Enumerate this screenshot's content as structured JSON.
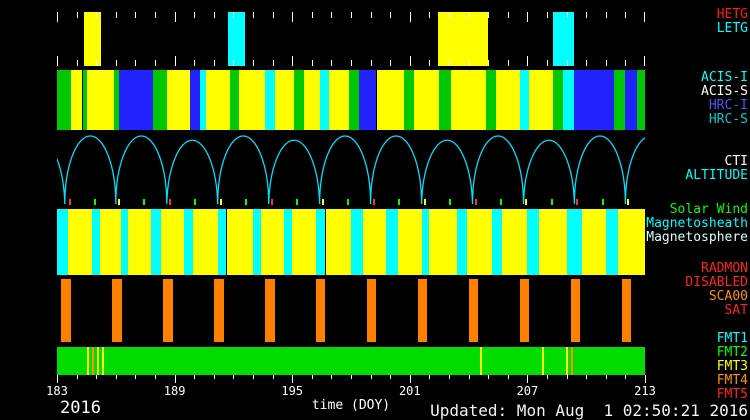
{
  "meta": {
    "year": "2016",
    "updated": "Updated: Mon Aug  1 02:50:21 2016"
  },
  "chart_data": {
    "type": "bar",
    "subtype": "mission-schedule-timeline",
    "xlabel": "time (DOY)",
    "x_range": [
      183,
      213
    ],
    "x_major_ticks": [
      183,
      189,
      195,
      201,
      207,
      213
    ],
    "background": "#000000",
    "axis_text_color": "#ffffff",
    "bands": [
      {
        "id": "grating",
        "labels": [
          {
            "text": "HETG",
            "color": "#ff1a1a"
          },
          {
            "text": "LETG",
            "color": "#00ffff"
          }
        ],
        "tick_color": "#ffffff",
        "segments": [
          {
            "start": 184.4,
            "end": 185.25,
            "color": "#ffff00"
          },
          {
            "start": 191.7,
            "end": 192.6,
            "color": "#00ffff"
          },
          {
            "start": 202.45,
            "end": 205.0,
            "color": "#ffff00"
          },
          {
            "start": 208.3,
            "end": 209.4,
            "color": "#00ffff"
          }
        ]
      },
      {
        "id": "instrument",
        "labels": [
          {
            "text": "ACIS-I",
            "color": "#00ffff"
          },
          {
            "text": "ACIS-S",
            "color": "#ffffff"
          },
          {
            "text": "HRC-I",
            "color": "#5050ff"
          },
          {
            "text": "HRC-S",
            "color": "#00c8c8"
          }
        ],
        "segments": [
          {
            "start": 183.0,
            "end": 183.7,
            "color": "#00c800"
          },
          {
            "start": 183.7,
            "end": 184.3,
            "color": "#ffff00"
          },
          {
            "start": 184.3,
            "end": 184.55,
            "color": "#00c800"
          },
          {
            "start": 184.55,
            "end": 185.9,
            "color": "#ffff00"
          },
          {
            "start": 185.9,
            "end": 186.15,
            "color": "#00c800"
          },
          {
            "start": 186.15,
            "end": 187.9,
            "color": "#2222ff"
          },
          {
            "start": 187.9,
            "end": 188.6,
            "color": "#00c800"
          },
          {
            "start": 188.6,
            "end": 189.8,
            "color": "#ffff00"
          },
          {
            "start": 189.8,
            "end": 190.3,
            "color": "#2222ff"
          },
          {
            "start": 190.3,
            "end": 190.6,
            "color": "#00ffff"
          },
          {
            "start": 190.6,
            "end": 191.8,
            "color": "#ffff00"
          },
          {
            "start": 191.8,
            "end": 192.3,
            "color": "#00c800"
          },
          {
            "start": 192.3,
            "end": 193.6,
            "color": "#ffff00"
          },
          {
            "start": 193.6,
            "end": 194.1,
            "color": "#00ffff"
          },
          {
            "start": 194.1,
            "end": 195.1,
            "color": "#ffff00"
          },
          {
            "start": 195.1,
            "end": 195.6,
            "color": "#00c800"
          },
          {
            "start": 195.6,
            "end": 196.4,
            "color": "#ffff00"
          },
          {
            "start": 196.4,
            "end": 196.9,
            "color": "#00ffff"
          },
          {
            "start": 196.9,
            "end": 197.9,
            "color": "#ffff00"
          },
          {
            "start": 197.9,
            "end": 198.4,
            "color": "#00c800"
          },
          {
            "start": 198.4,
            "end": 199.3,
            "color": "#2222ff"
          },
          {
            "start": 199.3,
            "end": 200.7,
            "color": "#ffff00"
          },
          {
            "start": 200.7,
            "end": 201.2,
            "color": "#00c800"
          },
          {
            "start": 201.2,
            "end": 202.5,
            "color": "#ffff00"
          },
          {
            "start": 202.5,
            "end": 203.1,
            "color": "#00c800"
          },
          {
            "start": 203.1,
            "end": 204.9,
            "color": "#ffff00"
          },
          {
            "start": 204.9,
            "end": 205.4,
            "color": "#00c800"
          },
          {
            "start": 205.4,
            "end": 206.6,
            "color": "#ffff00"
          },
          {
            "start": 206.6,
            "end": 207.1,
            "color": "#00ffff"
          },
          {
            "start": 207.1,
            "end": 208.3,
            "color": "#ffff00"
          },
          {
            "start": 208.3,
            "end": 208.8,
            "color": "#00c800"
          },
          {
            "start": 208.8,
            "end": 209.4,
            "color": "#00ffff"
          },
          {
            "start": 209.4,
            "end": 211.4,
            "color": "#2222ff"
          },
          {
            "start": 211.4,
            "end": 212.0,
            "color": "#00c800"
          },
          {
            "start": 212.0,
            "end": 212.6,
            "color": "#2222ff"
          },
          {
            "start": 212.6,
            "end": 213.0,
            "color": "#00c800"
          }
        ]
      },
      {
        "id": "altitude",
        "labels": [
          {
            "text": "CTI",
            "color": "#ffffff"
          },
          {
            "text": "ALTITUDE",
            "color": "#00ffff"
          }
        ],
        "arc_color": "#00e0ff",
        "perigees": [
          180.8,
          183.4,
          186.0,
          188.6,
          191.2,
          193.8,
          196.4,
          199.0,
          201.6,
          204.2,
          206.8,
          209.4,
          212.0,
          214.6
        ],
        "ticks": [
          {
            "pos": 183.6,
            "color": "#ff3030"
          },
          {
            "pos": 184.9,
            "color": "#00ff00"
          },
          {
            "pos": 186.1,
            "color": "#ffff00"
          },
          {
            "pos": 187.4,
            "color": "#00ff00"
          },
          {
            "pos": 188.7,
            "color": "#ff3030"
          },
          {
            "pos": 190.0,
            "color": "#00ff00"
          },
          {
            "pos": 191.3,
            "color": "#ffff00"
          },
          {
            "pos": 192.6,
            "color": "#00ff00"
          },
          {
            "pos": 193.9,
            "color": "#ff3030"
          },
          {
            "pos": 195.2,
            "color": "#00ff00"
          },
          {
            "pos": 196.5,
            "color": "#ffff00"
          },
          {
            "pos": 197.8,
            "color": "#00ff00"
          },
          {
            "pos": 199.1,
            "color": "#ff3030"
          },
          {
            "pos": 200.4,
            "color": "#00ff00"
          },
          {
            "pos": 201.7,
            "color": "#ffff00"
          },
          {
            "pos": 203.0,
            "color": "#00ff00"
          },
          {
            "pos": 204.3,
            "color": "#ff3030"
          },
          {
            "pos": 205.6,
            "color": "#00ff00"
          },
          {
            "pos": 206.9,
            "color": "#ffff00"
          },
          {
            "pos": 208.2,
            "color": "#00ff00"
          },
          {
            "pos": 209.5,
            "color": "#ff3030"
          },
          {
            "pos": 210.8,
            "color": "#00ff00"
          },
          {
            "pos": 212.1,
            "color": "#ffff00"
          }
        ]
      },
      {
        "id": "regions",
        "labels": [
          {
            "text": "Solar Wind",
            "color": "#00ff00"
          },
          {
            "text": "Magnetosheath",
            "color": "#00ffff"
          },
          {
            "text": "Magnetosphere",
            "color": "#d8ffff"
          }
        ],
        "segments": [
          {
            "start": 183.0,
            "end": 183.55,
            "color": "#00ffff"
          },
          {
            "start": 183.55,
            "end": 184.8,
            "color": "#ffff00"
          },
          {
            "start": 184.8,
            "end": 185.2,
            "color": "#00ffff"
          },
          {
            "start": 185.2,
            "end": 186.25,
            "color": "#ffff00"
          },
          {
            "start": 186.25,
            "end": 186.6,
            "color": "#00ffff"
          },
          {
            "start": 186.6,
            "end": 187.8,
            "color": "#ffff00"
          },
          {
            "start": 187.8,
            "end": 188.3,
            "color": "#00ffff"
          },
          {
            "start": 188.3,
            "end": 189.5,
            "color": "#ffff00"
          },
          {
            "start": 189.5,
            "end": 189.95,
            "color": "#00ffff"
          },
          {
            "start": 189.95,
            "end": 191.2,
            "color": "#ffff00"
          },
          {
            "start": 191.2,
            "end": 191.65,
            "color": "#00ffff"
          },
          {
            "start": 191.65,
            "end": 193.0,
            "color": "#ffff00"
          },
          {
            "start": 193.0,
            "end": 193.4,
            "color": "#00ffff"
          },
          {
            "start": 193.4,
            "end": 194.6,
            "color": "#ffff00"
          },
          {
            "start": 194.6,
            "end": 195.0,
            "color": "#00ffff"
          },
          {
            "start": 195.0,
            "end": 196.2,
            "color": "#ffff00"
          },
          {
            "start": 196.2,
            "end": 196.7,
            "color": "#00ffff"
          },
          {
            "start": 196.7,
            "end": 198.0,
            "color": "#ffff00"
          },
          {
            "start": 198.0,
            "end": 198.6,
            "color": "#00ffff"
          },
          {
            "start": 198.6,
            "end": 199.8,
            "color": "#ffff00"
          },
          {
            "start": 199.8,
            "end": 200.4,
            "color": "#00ffff"
          },
          {
            "start": 200.4,
            "end": 201.6,
            "color": "#ffff00"
          },
          {
            "start": 201.6,
            "end": 202.0,
            "color": "#00ffff"
          },
          {
            "start": 202.0,
            "end": 203.4,
            "color": "#ffff00"
          },
          {
            "start": 203.4,
            "end": 203.9,
            "color": "#00ffff"
          },
          {
            "start": 203.9,
            "end": 205.2,
            "color": "#ffff00"
          },
          {
            "start": 205.2,
            "end": 205.7,
            "color": "#00ffff"
          },
          {
            "start": 205.7,
            "end": 207.0,
            "color": "#ffff00"
          },
          {
            "start": 207.0,
            "end": 207.6,
            "color": "#00ffff"
          },
          {
            "start": 207.6,
            "end": 209.0,
            "color": "#ffff00"
          },
          {
            "start": 209.0,
            "end": 209.8,
            "color": "#00ffff"
          },
          {
            "start": 209.8,
            "end": 211.0,
            "color": "#ffff00"
          },
          {
            "start": 211.0,
            "end": 211.6,
            "color": "#00ffff"
          },
          {
            "start": 211.6,
            "end": 213.0,
            "color": "#ffff00"
          }
        ]
      },
      {
        "id": "radmon",
        "labels": [
          {
            "text": "RADMON",
            "color": "#ff2020"
          },
          {
            "text": "DISABLED",
            "color": "#ff2020"
          },
          {
            "text": "SCA00",
            "color": "#ff9100"
          },
          {
            "text": "SAT",
            "color": "#ff2020"
          }
        ],
        "segments": [
          {
            "start": 183.2,
            "end": 183.7,
            "color": "#ff7f00"
          },
          {
            "start": 185.8,
            "end": 186.3,
            "color": "#ff7f00"
          },
          {
            "start": 188.4,
            "end": 188.9,
            "color": "#ff7f00"
          },
          {
            "start": 191.0,
            "end": 191.5,
            "color": "#ff7f00"
          },
          {
            "start": 193.6,
            "end": 194.1,
            "color": "#ff7f00"
          },
          {
            "start": 196.2,
            "end": 196.7,
            "color": "#ff7f00"
          },
          {
            "start": 198.8,
            "end": 199.3,
            "color": "#ff7f00"
          },
          {
            "start": 201.4,
            "end": 201.9,
            "color": "#ff7f00"
          },
          {
            "start": 204.0,
            "end": 204.5,
            "color": "#ff7f00"
          },
          {
            "start": 206.6,
            "end": 207.1,
            "color": "#ff7f00"
          },
          {
            "start": 209.2,
            "end": 209.7,
            "color": "#ff7f00"
          },
          {
            "start": 211.8,
            "end": 212.3,
            "color": "#ff7f00"
          }
        ]
      },
      {
        "id": "fmt",
        "labels": [
          {
            "text": "FMT1",
            "color": "#00ffff"
          },
          {
            "text": "FMT2",
            "color": "#00ff00"
          },
          {
            "text": "FMT3",
            "color": "#ffff00"
          },
          {
            "text": "FMT4",
            "color": "#ff9100"
          },
          {
            "text": "FMT5",
            "color": "#ff2020"
          }
        ],
        "base_color": "#00dc00",
        "stripes": [
          {
            "pos": 184.55,
            "color": "#ffff00"
          },
          {
            "pos": 184.8,
            "color": "#ff9100"
          },
          {
            "pos": 185.05,
            "color": "#ffff00"
          },
          {
            "pos": 185.3,
            "color": "#ffff00"
          },
          {
            "pos": 204.6,
            "color": "#ffff00"
          },
          {
            "pos": 207.75,
            "color": "#ffff00"
          },
          {
            "pos": 208.95,
            "color": "#ffff00"
          },
          {
            "pos": 209.2,
            "color": "#ff9100"
          }
        ]
      }
    ]
  }
}
